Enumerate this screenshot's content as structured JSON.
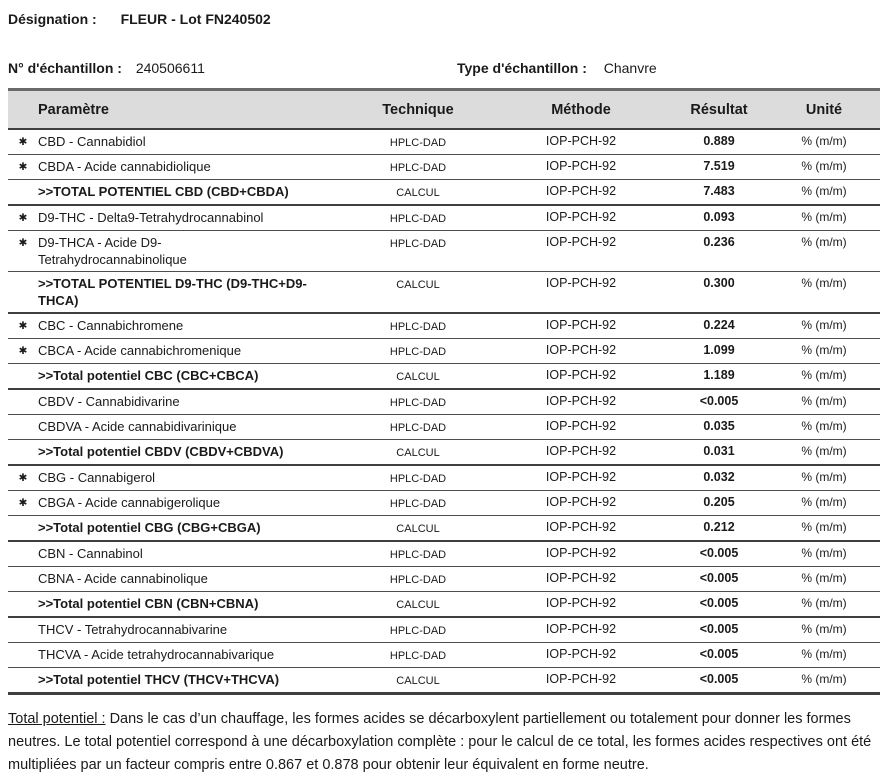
{
  "header": {
    "designation_label": "Désignation :",
    "designation_value": "FLEUR - Lot FN240502",
    "sample_number_label": "N° d'échantillon :",
    "sample_number_value": "240506611",
    "sample_type_label": "Type d'échantillon :",
    "sample_type_value": "Chanvre"
  },
  "table": {
    "marker": "✱",
    "columns": [
      "Paramètre",
      "Technique",
      "Méthode",
      "Résultat",
      "Unité"
    ],
    "rows": [
      {
        "starred": true,
        "param": "CBD - Cannabidiol",
        "technique": "HPLC-DAD",
        "methode": "IOP-PCH-92",
        "resultat": "0.889",
        "unite": "% (m/m)",
        "bold": false,
        "group_end": false
      },
      {
        "starred": true,
        "param": "CBDA - Acide cannabidiolique",
        "technique": "HPLC-DAD",
        "methode": "IOP-PCH-92",
        "resultat": "7.519",
        "unite": "% (m/m)",
        "bold": false,
        "group_end": false
      },
      {
        "starred": false,
        "param": ">>TOTAL POTENTIEL CBD (CBD+CBDA)",
        "technique": "CALCUL",
        "methode": "IOP-PCH-92",
        "resultat": "7.483",
        "unite": "% (m/m)",
        "bold": true,
        "group_end": true
      },
      {
        "starred": true,
        "param": "D9-THC - Delta9-Tetrahydrocannabinol",
        "technique": "HPLC-DAD",
        "methode": "IOP-PCH-92",
        "resultat": "0.093",
        "unite": "% (m/m)",
        "bold": false,
        "group_end": false
      },
      {
        "starred": true,
        "param": "D9-THCA - Acide D9-\nTetrahydrocannabinolique",
        "technique": "HPLC-DAD",
        "methode": "IOP-PCH-92",
        "resultat": "0.236",
        "unite": "% (m/m)",
        "bold": false,
        "group_end": false
      },
      {
        "starred": false,
        "param": ">>TOTAL POTENTIEL D9-THC (D9-THC+D9-\nTHCA)",
        "technique": "CALCUL",
        "methode": "IOP-PCH-92",
        "resultat": "0.300",
        "unite": "% (m/m)",
        "bold": true,
        "group_end": true
      },
      {
        "starred": true,
        "param": "CBC - Cannabichromene",
        "technique": "HPLC-DAD",
        "methode": "IOP-PCH-92",
        "resultat": "0.224",
        "unite": "% (m/m)",
        "bold": false,
        "group_end": false
      },
      {
        "starred": true,
        "param": "CBCA - Acide cannabichromenique",
        "technique": "HPLC-DAD",
        "methode": "IOP-PCH-92",
        "resultat": "1.099",
        "unite": "% (m/m)",
        "bold": false,
        "group_end": false
      },
      {
        "starred": false,
        "param": ">>Total potentiel CBC (CBC+CBCA)",
        "technique": "CALCUL",
        "methode": "IOP-PCH-92",
        "resultat": "1.189",
        "unite": "% (m/m)",
        "bold": true,
        "group_end": true
      },
      {
        "starred": false,
        "param": "CBDV - Cannabidivarine",
        "technique": "HPLC-DAD",
        "methode": "IOP-PCH-92",
        "resultat": "<0.005",
        "unite": "% (m/m)",
        "bold": false,
        "group_end": false
      },
      {
        "starred": false,
        "param": "CBDVA - Acide cannabidivarinique",
        "technique": "HPLC-DAD",
        "methode": "IOP-PCH-92",
        "resultat": "0.035",
        "unite": "% (m/m)",
        "bold": false,
        "group_end": false
      },
      {
        "starred": false,
        "param": ">>Total potentiel CBDV (CBDV+CBDVA)",
        "technique": "CALCUL",
        "methode": "IOP-PCH-92",
        "resultat": "0.031",
        "unite": "% (m/m)",
        "bold": true,
        "group_end": true
      },
      {
        "starred": true,
        "param": "CBG - Cannabigerol",
        "technique": "HPLC-DAD",
        "methode": "IOP-PCH-92",
        "resultat": "0.032",
        "unite": "% (m/m)",
        "bold": false,
        "group_end": false
      },
      {
        "starred": true,
        "param": "CBGA - Acide cannabigerolique",
        "technique": "HPLC-DAD",
        "methode": "IOP-PCH-92",
        "resultat": "0.205",
        "unite": "% (m/m)",
        "bold": false,
        "group_end": false
      },
      {
        "starred": false,
        "param": ">>Total potentiel CBG (CBG+CBGA)",
        "technique": "CALCUL",
        "methode": "IOP-PCH-92",
        "resultat": "0.212",
        "unite": "% (m/m)",
        "bold": true,
        "group_end": true
      },
      {
        "starred": false,
        "param": "CBN - Cannabinol",
        "technique": "HPLC-DAD",
        "methode": "IOP-PCH-92",
        "resultat": "<0.005",
        "unite": "% (m/m)",
        "bold": false,
        "group_end": false
      },
      {
        "starred": false,
        "param": "CBNA - Acide cannabinolique",
        "technique": "HPLC-DAD",
        "methode": "IOP-PCH-92",
        "resultat": "<0.005",
        "unite": "% (m/m)",
        "bold": false,
        "group_end": false
      },
      {
        "starred": false,
        "param": ">>Total potentiel CBN (CBN+CBNA)",
        "technique": "CALCUL",
        "methode": "IOP-PCH-92",
        "resultat": "<0.005",
        "unite": "% (m/m)",
        "bold": true,
        "group_end": true
      },
      {
        "starred": false,
        "param": "THCV - Tetrahydrocannabivarine",
        "technique": "HPLC-DAD",
        "methode": "IOP-PCH-92",
        "resultat": "<0.005",
        "unite": "% (m/m)",
        "bold": false,
        "group_end": false
      },
      {
        "starred": false,
        "param": "THCVA - Acide tetrahydrocannabivarique",
        "technique": "HPLC-DAD",
        "methode": "IOP-PCH-92",
        "resultat": "<0.005",
        "unite": "% (m/m)",
        "bold": false,
        "group_end": false
      },
      {
        "starred": false,
        "param": ">>Total potentiel THCV (THCV+THCVA)",
        "technique": "CALCUL",
        "methode": "IOP-PCH-92",
        "resultat": "<0.005",
        "unite": "% (m/m)",
        "bold": true,
        "group_end": true
      }
    ]
  },
  "footnote": {
    "title": "Total potentiel :",
    "text": " Dans le cas d’un chauffage, les formes acides se décarboxylent partiellement ou totalement pour donner les formes neutres. Le total potentiel correspond à une décarboxylation complète : pour le calcul de ce total, les formes acides respectives ont été multipliées par un facteur compris entre 0.867 et 0.878 pour obtenir leur équivalent en forme neutre."
  },
  "colors": {
    "header_bg": "#dcdcdc",
    "border_dark": "#3f3f3f",
    "text": "#1a1a1a"
  }
}
